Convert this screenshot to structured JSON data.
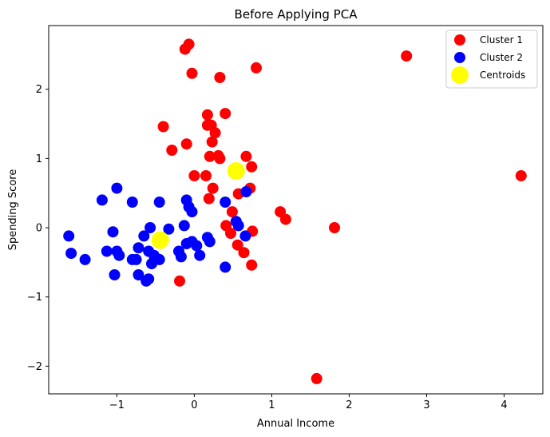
{
  "chart_data": {
    "type": "scatter",
    "title": "Before Applying PCA",
    "xlabel": "Annual Income",
    "ylabel": "Spending Score",
    "xlim": [
      -1.88,
      4.5
    ],
    "ylim": [
      -2.4,
      2.92
    ],
    "xticks": [
      -1,
      0,
      1,
      2,
      3,
      4
    ],
    "xtick_labels": [
      "−1",
      "0",
      "1",
      "2",
      "3",
      "4"
    ],
    "yticks": [
      -2,
      -1,
      0,
      1,
      2
    ],
    "ytick_labels": [
      "−2",
      "−1",
      "0",
      "1",
      "2"
    ],
    "grid": false,
    "legend_position": "top-right",
    "series": [
      {
        "name": "Cluster 1",
        "color": "#ff0000",
        "x": [
          -0.07,
          -0.12,
          -0.03,
          0.33,
          0.8,
          2.74,
          0.4,
          -0.4,
          0.17,
          0.22,
          0.27,
          0.17,
          -0.1,
          0.23,
          -0.29,
          0.2,
          0.31,
          0.33,
          0.67,
          0.74,
          0.0,
          0.15,
          0.24,
          0.72,
          0.19,
          0.57,
          1.11,
          1.18,
          1.81,
          0.41,
          0.49,
          0.75,
          0.47,
          0.56,
          0.64,
          0.74,
          -0.19,
          1.58,
          4.22
        ],
        "y": [
          2.65,
          2.58,
          2.23,
          2.17,
          2.31,
          2.48,
          1.65,
          1.46,
          1.63,
          1.48,
          1.37,
          1.48,
          1.21,
          1.24,
          1.12,
          1.03,
          1.04,
          1.0,
          1.03,
          0.88,
          0.75,
          0.75,
          0.57,
          0.57,
          0.42,
          0.49,
          0.23,
          0.12,
          0.0,
          0.03,
          0.23,
          -0.05,
          -0.08,
          -0.25,
          -0.36,
          -0.54,
          -0.77,
          -2.18,
          0.75
        ]
      },
      {
        "name": "Cluster 2",
        "color": "#0000ff",
        "x": [
          -1.0,
          -1.19,
          -0.8,
          -0.45,
          -0.1,
          -0.07,
          -0.03,
          0.4,
          0.67,
          0.54,
          0.57,
          0.66,
          -1.62,
          -1.05,
          -0.57,
          -0.33,
          -0.13,
          -0.65,
          -1.59,
          -1.41,
          -1.13,
          -1.0,
          -0.97,
          -0.8,
          -0.72,
          -0.59,
          -0.52,
          -0.45,
          -0.2,
          -0.17,
          -0.1,
          -0.03,
          0.03,
          0.17,
          0.2,
          0.07,
          -0.72,
          -0.55,
          -1.03,
          -0.75,
          -0.62,
          -0.59,
          0.4
        ],
        "y": [
          0.57,
          0.4,
          0.37,
          0.37,
          0.4,
          0.3,
          0.23,
          0.37,
          0.52,
          0.09,
          0.03,
          -0.12,
          -0.12,
          -0.06,
          0.0,
          -0.02,
          0.03,
          -0.12,
          -0.37,
          -0.46,
          -0.34,
          -0.34,
          -0.4,
          -0.46,
          -0.29,
          -0.34,
          -0.4,
          -0.46,
          -0.34,
          -0.42,
          -0.23,
          -0.2,
          -0.26,
          -0.14,
          -0.2,
          -0.4,
          -0.68,
          -0.52,
          -0.68,
          -0.46,
          -0.77,
          -0.74,
          -0.57
        ]
      },
      {
        "name": "Centroids",
        "color": "#ffff00",
        "x": [
          0.54,
          -0.44
        ],
        "y": [
          0.82,
          -0.18
        ]
      }
    ]
  }
}
